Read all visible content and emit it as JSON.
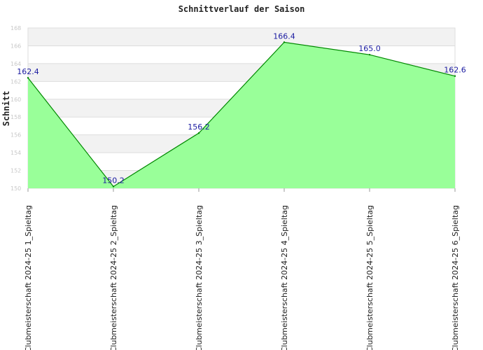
{
  "chart_data": {
    "type": "area",
    "title": "Schnittverlauf der Saison",
    "xlabel": "",
    "ylabel": "Schnitt",
    "categories": [
      "Clubmeisterschaft 2024-25   1_Spieltag",
      "Clubmeisterschaft 2024-25   2_Spieltag",
      "Clubmeisterschaft 2024-25   3_Spieltag",
      "Clubmeisterschaft 2024-25   4_Spieltag",
      "Clubmeisterschaft 2024-25   5_Spieltag",
      "Clubmeisterschaft 2024-25   6_Spieltag"
    ],
    "series": [
      {
        "values": [
          162.4,
          150.2,
          156.2,
          166.4,
          165.0,
          162.6
        ]
      }
    ],
    "data_labels": [
      "162.4",
      "150.2",
      "156.2",
      "166.4",
      "165.0",
      "162.6"
    ],
    "ylim": [
      150,
      168
    ],
    "yticks": [
      150,
      152,
      154,
      156,
      158,
      160,
      162,
      164,
      166,
      168
    ],
    "grid": true,
    "legend": "none",
    "colors": {
      "fill": "#99ff99",
      "line": "#008800",
      "band": "#f2f2f2",
      "grid": "#dddddd",
      "label": "#1a1aa0"
    }
  }
}
